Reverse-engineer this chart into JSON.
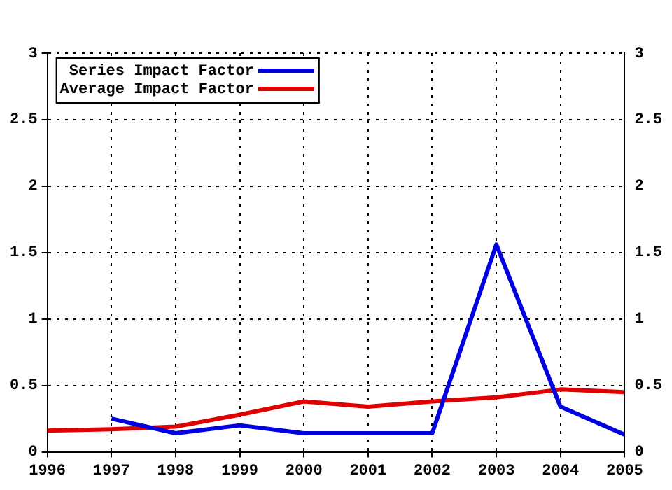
{
  "chart_data": {
    "type": "line",
    "x": [
      1996,
      1997,
      1998,
      1999,
      2000,
      2001,
      2002,
      2003,
      2004,
      2005
    ],
    "series": [
      {
        "name": "Series Impact Factor",
        "color": "#0000e0",
        "values": [
          null,
          0.25,
          0.14,
          0.2,
          0.14,
          0.14,
          0.14,
          1.56,
          0.34,
          0.13
        ]
      },
      {
        "name": "Average Impact Factor",
        "color": "#e00000",
        "values": [
          0.16,
          0.17,
          0.19,
          0.28,
          0.38,
          0.34,
          0.38,
          0.41,
          0.47,
          0.45
        ]
      }
    ],
    "xlim": [
      1996,
      2005
    ],
    "xticks": [
      1996,
      1997,
      1998,
      1999,
      2000,
      2001,
      2002,
      2003,
      2004,
      2005
    ],
    "ylim": [
      0,
      3
    ],
    "yticks": [
      0,
      {
        "value": 0.5,
        "label": "0.5"
      },
      1,
      {
        "value": 1.5,
        "label": "1.5"
      },
      2,
      {
        "value": 2.5,
        "label": "2.5"
      },
      3
    ],
    "y2lim": [
      0,
      3
    ],
    "y2ticks": [
      0,
      {
        "value": 0.5,
        "label": "0.5"
      },
      1,
      {
        "value": 1.5,
        "label": "1.5"
      },
      2,
      {
        "value": 2.5,
        "label": "2.5"
      },
      3
    ],
    "grid": true,
    "legend": "top left",
    "marker": "none",
    "line_style": "solid"
  }
}
